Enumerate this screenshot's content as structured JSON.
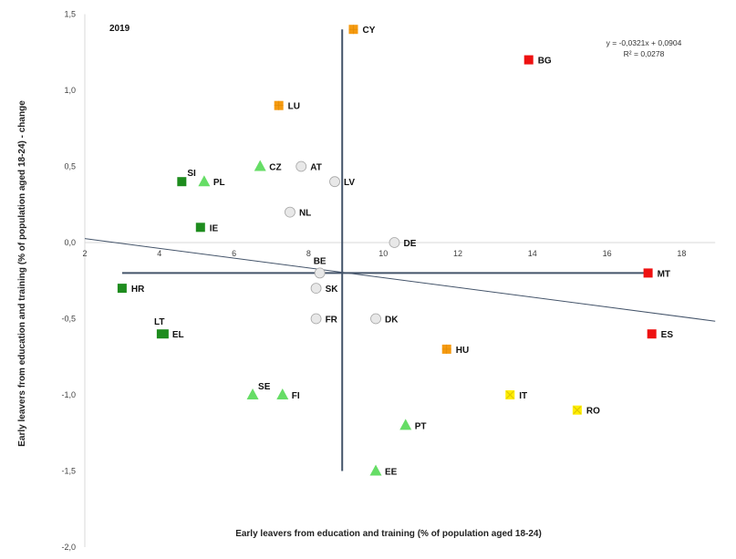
{
  "chart_data": {
    "type": "scatter",
    "title": "2019",
    "xlabel": "Early leavers from education and training (% of population aged 18-24)",
    "ylabel": "Early leavers from education and training (% of population aged 18-24) - change",
    "xlim": [
      2,
      18.9
    ],
    "ylim": [
      -2.0,
      1.5
    ],
    "x_ticks": [
      "2",
      "4",
      "6",
      "8",
      "10",
      "12",
      "14",
      "16",
      "18"
    ],
    "x_tick_values": [
      2,
      4,
      6,
      8,
      10,
      12,
      14,
      16,
      18
    ],
    "y_ticks": [
      "1,5",
      "1,0",
      "0,5",
      "0,0",
      "-0,5",
      "-1,0",
      "-1,5",
      "-2,0"
    ],
    "y_tick_values": [
      1.5,
      1.0,
      0.5,
      0.0,
      -0.5,
      -1.0,
      -1.5,
      -2.0
    ],
    "trendline": {
      "slope": -0.0321,
      "intercept": 0.0904,
      "equation": "y = -0,0321x + 0,0904",
      "r2": "R² = 0,0278"
    },
    "reference_lines": {
      "vertical_x": 8.9,
      "vertical_y_range": [
        -1.5,
        1.4
      ],
      "horizontal_y": -0.2,
      "horizontal_x_range": [
        3.0,
        17.1
      ]
    },
    "marker_styles": {
      "green-square": "#1e8c1e",
      "light-green-triangle": "#66dd66",
      "grey-circle": "#e8e8e8",
      "orange-square": "#f59a10",
      "red-square": "#ee1111",
      "yellow-cross": "#ffee00"
    },
    "points": [
      {
        "label": "CY",
        "x": 9.2,
        "y": 1.4,
        "marker": "orange-square"
      },
      {
        "label": "BG",
        "x": 13.9,
        "y": 1.2,
        "marker": "red-square"
      },
      {
        "label": "LU",
        "x": 7.2,
        "y": 0.9,
        "marker": "orange-square"
      },
      {
        "label": "CZ",
        "x": 6.7,
        "y": 0.5,
        "marker": "light-green-triangle"
      },
      {
        "label": "AT",
        "x": 7.8,
        "y": 0.5,
        "marker": "grey-circle"
      },
      {
        "label": "SI",
        "x": 4.6,
        "y": 0.4,
        "marker": "green-square",
        "label_pos": "above-right"
      },
      {
        "label": "PL",
        "x": 5.2,
        "y": 0.4,
        "marker": "light-green-triangle"
      },
      {
        "label": "LV",
        "x": 8.7,
        "y": 0.4,
        "marker": "grey-circle"
      },
      {
        "label": "NL",
        "x": 7.5,
        "y": 0.2,
        "marker": "grey-circle"
      },
      {
        "label": "IE",
        "x": 5.1,
        "y": 0.1,
        "marker": "green-square"
      },
      {
        "label": "DE",
        "x": 10.3,
        "y": 0.0,
        "marker": "grey-circle"
      },
      {
        "label": "BE",
        "x": 8.3,
        "y": -0.2,
        "marker": "grey-circle",
        "label_pos": "above"
      },
      {
        "label": "MT",
        "x": 17.1,
        "y": -0.2,
        "marker": "red-square"
      },
      {
        "label": "HR",
        "x": 3.0,
        "y": -0.3,
        "marker": "green-square"
      },
      {
        "label": "SK",
        "x": 8.2,
        "y": -0.3,
        "marker": "grey-circle"
      },
      {
        "label": "FR",
        "x": 8.2,
        "y": -0.5,
        "marker": "grey-circle"
      },
      {
        "label": "DK",
        "x": 9.8,
        "y": -0.5,
        "marker": "grey-circle"
      },
      {
        "label": "LT",
        "x": 4.0,
        "y": -0.6,
        "marker": "green-square",
        "label_pos": "above"
      },
      {
        "label": "EL",
        "x": 4.1,
        "y": -0.6,
        "marker": "green-square"
      },
      {
        "label": "ES",
        "x": 17.2,
        "y": -0.6,
        "marker": "red-square"
      },
      {
        "label": "HU",
        "x": 11.7,
        "y": -0.7,
        "marker": "orange-square"
      },
      {
        "label": "SE",
        "x": 6.5,
        "y": -1.0,
        "marker": "light-green-triangle",
        "label_pos": "above-right"
      },
      {
        "label": "FI",
        "x": 7.3,
        "y": -1.0,
        "marker": "light-green-triangle"
      },
      {
        "label": "IT",
        "x": 13.4,
        "y": -1.0,
        "marker": "yellow-cross"
      },
      {
        "label": "RO",
        "x": 15.2,
        "y": -1.1,
        "marker": "yellow-cross"
      },
      {
        "label": "PT",
        "x": 10.6,
        "y": -1.2,
        "marker": "light-green-triangle"
      },
      {
        "label": "EE",
        "x": 9.8,
        "y": -1.5,
        "marker": "light-green-triangle"
      }
    ]
  }
}
